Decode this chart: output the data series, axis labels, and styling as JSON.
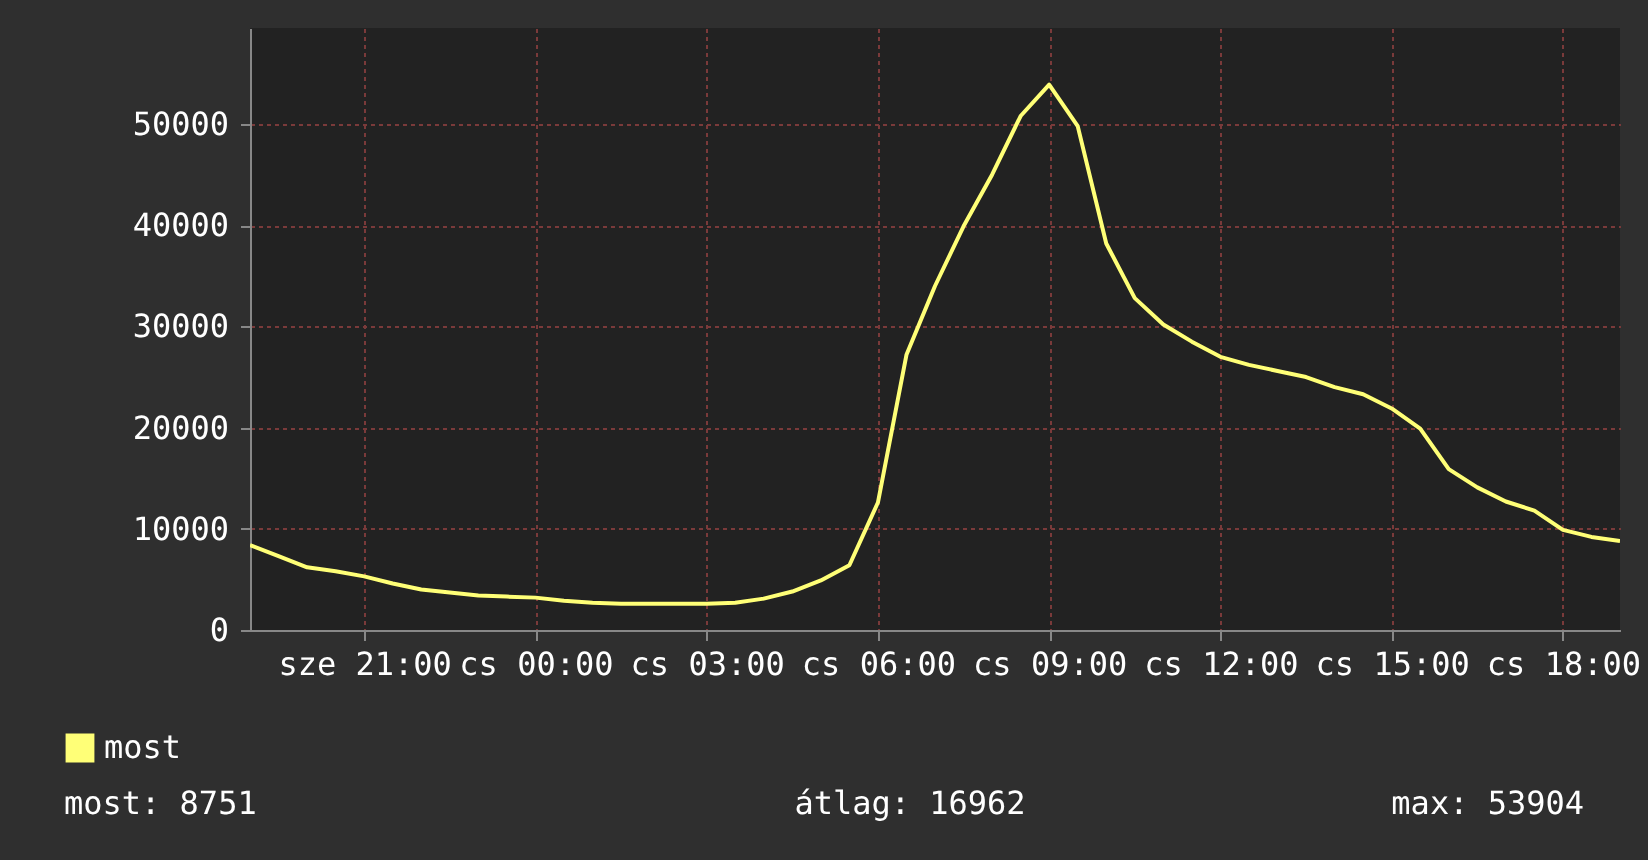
{
  "chart_data": {
    "type": "line",
    "categories": [
      null,
      null,
      null,
      null,
      "sze 21:00",
      null,
      null,
      null,
      null,
      null,
      "cs 00:00",
      null,
      null,
      null,
      null,
      null,
      "cs 03:00",
      null,
      null,
      null,
      null,
      null,
      "cs 06:00",
      null,
      null,
      null,
      null,
      null,
      "cs 09:00",
      null,
      null,
      null,
      null,
      null,
      "cs 12:00",
      null,
      null,
      null,
      null,
      null,
      "cs 15:00",
      null,
      null,
      null,
      null,
      null,
      "cs 18:00",
      null,
      null
    ],
    "series": [
      {
        "name": "most",
        "color": "#ffff77",
        "values": [
          8400,
          7300,
          6200,
          5800,
          5300,
          4600,
          4000,
          3700,
          3400,
          3300,
          3200,
          2900,
          2700,
          2600,
          2600,
          2600,
          2600,
          2700,
          3100,
          3800,
          4900,
          6400,
          12600,
          27200,
          34000,
          39900,
          45000,
          50800,
          53900,
          49800,
          38200,
          32800,
          30200,
          28500,
          27000,
          26200,
          25600,
          25000,
          24000,
          23300,
          21900,
          19900,
          15900,
          14100,
          12700,
          11800,
          9900,
          9200,
          8800
        ]
      }
    ],
    "ylim": [
      0,
      59500
    ],
    "yticks": [
      0,
      10000,
      20000,
      30000,
      40000,
      50000
    ],
    "grid": true,
    "legend": "bottom left",
    "annotations": [
      "most: 8751",
      "átlag: 16962",
      "max: 53904"
    ]
  }
}
